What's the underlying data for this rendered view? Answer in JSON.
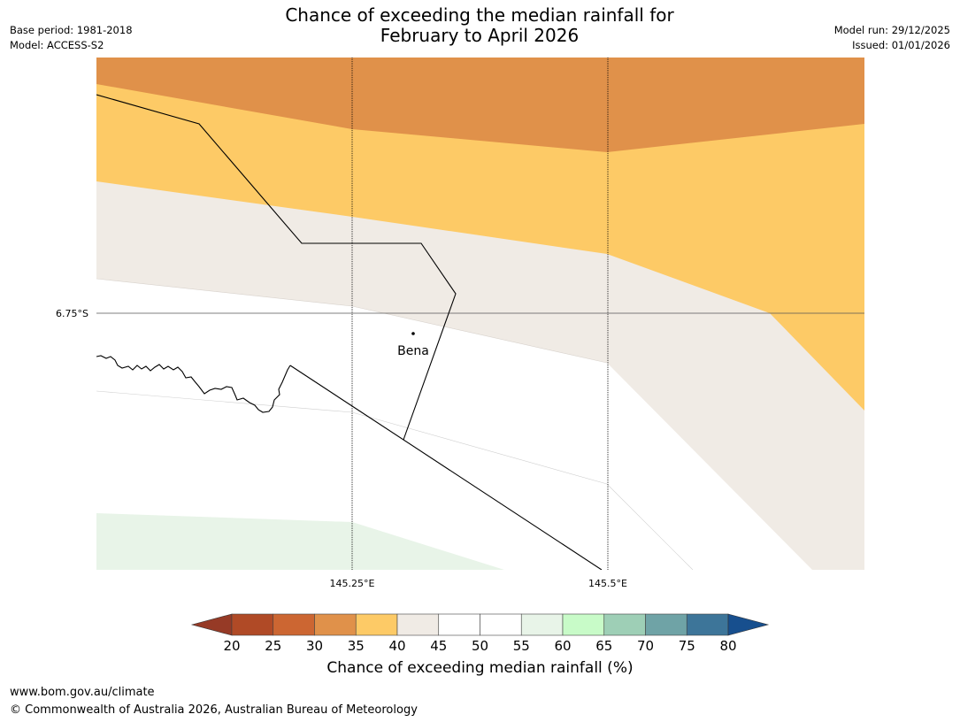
{
  "title": {
    "line1": "Chance of exceeding the median rainfall for",
    "line2": "February to April 2026"
  },
  "meta": {
    "base_period": "Base period: 1981-2018",
    "model": "Model: ACCESS-S2",
    "model_run": "Model run: 29/12/2025",
    "issued": "Issued: 01/01/2026"
  },
  "map": {
    "lat_label": "6.75°S",
    "lon_labels": [
      "145.25°E",
      "145.5°E"
    ],
    "place_label": "Bena"
  },
  "colorbar": {
    "ticks": [
      "20",
      "25",
      "30",
      "35",
      "40",
      "45",
      "50",
      "55",
      "60",
      "65",
      "70",
      "75",
      "80"
    ],
    "colors": [
      "#b04a26",
      "#cc6632",
      "#e0914a",
      "#fdca66",
      "#f0ebe5",
      "#ffffff",
      "#ffffff",
      "#e8f4e8",
      "#c8fbc8",
      "#9ecfb6",
      "#6fa3a6",
      "#3d7599"
    ],
    "under_color": "#963a26",
    "over_color": "#174f8e",
    "label": "Chance of exceeding median rainfall (%)"
  },
  "footer": {
    "url": "www.bom.gov.au/climate",
    "copyright": "© Commonwealth of Australia 2026, Australian Bureau of Meteorology"
  }
}
